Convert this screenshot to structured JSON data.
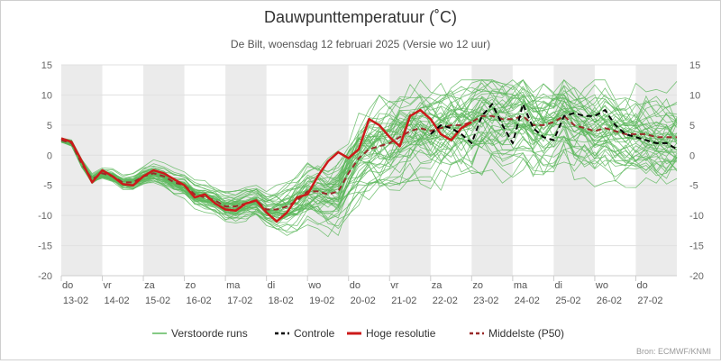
{
  "chart_data": {
    "type": "line",
    "title": "Dauwpunttemperatuur (˚C)",
    "subtitle": "De Bilt, woensdag 12 februari 2025 (Versie wo 12 uur)",
    "source": "Bron: ECMWF/KNMI",
    "ylim": [
      -20,
      15
    ],
    "y_ticks": [
      15,
      10,
      5,
      0,
      -5,
      -10,
      -15,
      -20
    ],
    "x_unit": "days from 13-02 00h",
    "xlim": [
      0,
      15
    ],
    "shaded_days": [
      0,
      2,
      4,
      6,
      8,
      10,
      12,
      14
    ],
    "x_ticks": [
      {
        "day": "do",
        "date": "13-02"
      },
      {
        "day": "vr",
        "date": "14-02"
      },
      {
        "day": "za",
        "date": "15-02"
      },
      {
        "day": "zo",
        "date": "16-02"
      },
      {
        "day": "ma",
        "date": "17-02"
      },
      {
        "day": "di",
        "date": "18-02"
      },
      {
        "day": "wo",
        "date": "19-02"
      },
      {
        "day": "do",
        "date": "20-02"
      },
      {
        "day": "vr",
        "date": "21-02"
      },
      {
        "day": "za",
        "date": "22-02"
      },
      {
        "day": "zo",
        "date": "23-02"
      },
      {
        "day": "ma",
        "date": "24-02"
      },
      {
        "day": "di",
        "date": "25-02"
      },
      {
        "day": "wo",
        "date": "26-02"
      },
      {
        "day": "do",
        "date": "27-02"
      }
    ],
    "colors": {
      "ensemble": "#5cb85c",
      "control": "#000000",
      "high_res": "#cc1a1a",
      "median": "#9a2a2a",
      "shading": "#ebebeb"
    },
    "ensemble_step": 0.25,
    "ensemble_start_day": 0,
    "ensemble_count": 50,
    "legend": [
      {
        "key": "ensemble",
        "label": "Verstoorde runs",
        "style": "solid-thin"
      },
      {
        "key": "control",
        "label": "Controle",
        "style": "dashed"
      },
      {
        "key": "high_res",
        "label": "Hoge resolutie",
        "style": "solid-thick"
      },
      {
        "key": "median",
        "label": "Middelste (P50)",
        "style": "dashed"
      }
    ],
    "series": [
      {
        "key": "high_res",
        "name": "Hoge resolutie",
        "x": [
          0,
          0.25,
          0.5,
          0.75,
          1,
          1.25,
          1.5,
          1.75,
          2,
          2.25,
          2.5,
          2.75,
          3,
          3.25,
          3.5,
          3.75,
          4,
          4.25,
          4.5,
          4.75,
          5,
          5.25,
          5.5,
          5.75,
          6,
          6.25,
          6.5,
          6.75,
          7,
          7.25,
          7.5,
          7.75,
          8,
          8.25,
          8.5,
          8.75,
          9,
          9.25,
          9.5,
          9.75,
          10
        ],
        "y": [
          2.8,
          2.2,
          -1.0,
          -4.5,
          -2.5,
          -3.5,
          -4.8,
          -5.0,
          -3.5,
          -2.5,
          -3.0,
          -4.0,
          -5.0,
          -7.0,
          -6.5,
          -8.0,
          -9.0,
          -9.2,
          -8.0,
          -7.5,
          -9.5,
          -11.0,
          -9.5,
          -7.0,
          -6.5,
          -3.5,
          -1.0,
          0.5,
          -0.5,
          1.0,
          6.0,
          5.0,
          3.0,
          1.5,
          6.5,
          7.5,
          6.0,
          3.5,
          2.5,
          4.5,
          5.5
        ]
      },
      {
        "key": "control",
        "name": "Controle",
        "x": [
          9.0,
          9.25,
          9.5,
          9.75,
          10,
          10.25,
          10.5,
          10.75,
          11,
          11.25,
          11.5,
          11.75,
          12,
          12.25,
          12.5,
          12.75,
          13,
          13.25,
          13.5,
          13.75,
          14,
          14.25,
          14.5,
          14.75,
          15
        ],
        "y": [
          3.5,
          5.0,
          4.5,
          3.5,
          2.0,
          6.5,
          8.5,
          5.0,
          2.0,
          8.5,
          4.5,
          3.0,
          2.5,
          6.5,
          7.0,
          6.5,
          6.5,
          7.5,
          5.0,
          3.5,
          3.0,
          2.5,
          2.0,
          2.0,
          1.0
        ]
      },
      {
        "key": "median",
        "name": "Middelste (P50)",
        "x": [
          0,
          0.25,
          0.5,
          0.75,
          1,
          1.25,
          1.5,
          1.75,
          2,
          2.25,
          2.5,
          2.75,
          3,
          3.25,
          3.5,
          3.75,
          4,
          4.25,
          4.5,
          4.75,
          5,
          5.25,
          5.5,
          5.75,
          6,
          6.25,
          6.5,
          6.75,
          7,
          7.25,
          7.5,
          7.75,
          8,
          8.25,
          8.5,
          8.75,
          9,
          9.25,
          9.5,
          9.75,
          10,
          10.25,
          10.5,
          10.75,
          11,
          11.25,
          11.5,
          11.75,
          12,
          12.25,
          12.5,
          12.75,
          13,
          13.25,
          13.5,
          13.75,
          14,
          14.25,
          14.5,
          14.75,
          15
        ],
        "y": [
          2.5,
          2.0,
          -1.5,
          -4.0,
          -3.0,
          -3.5,
          -4.5,
          -4.5,
          -3.5,
          -3.0,
          -3.5,
          -4.5,
          -5.0,
          -6.5,
          -7.0,
          -7.5,
          -8.5,
          -8.5,
          -8.0,
          -7.5,
          -9.0,
          -9.0,
          -8.5,
          -7.5,
          -6.0,
          -6.0,
          -6.5,
          -6.0,
          -3.0,
          -0.5,
          1.0,
          1.5,
          2.0,
          3.0,
          4.0,
          4.5,
          4.0,
          4.5,
          5.0,
          5.0,
          5.5,
          6.5,
          6.5,
          6.0,
          6.0,
          6.5,
          5.0,
          5.0,
          5.5,
          6.5,
          5.0,
          4.5,
          4.0,
          4.5,
          4.0,
          3.5,
          3.5,
          3.5,
          3.0,
          3.0,
          3.0
        ]
      }
    ]
  }
}
